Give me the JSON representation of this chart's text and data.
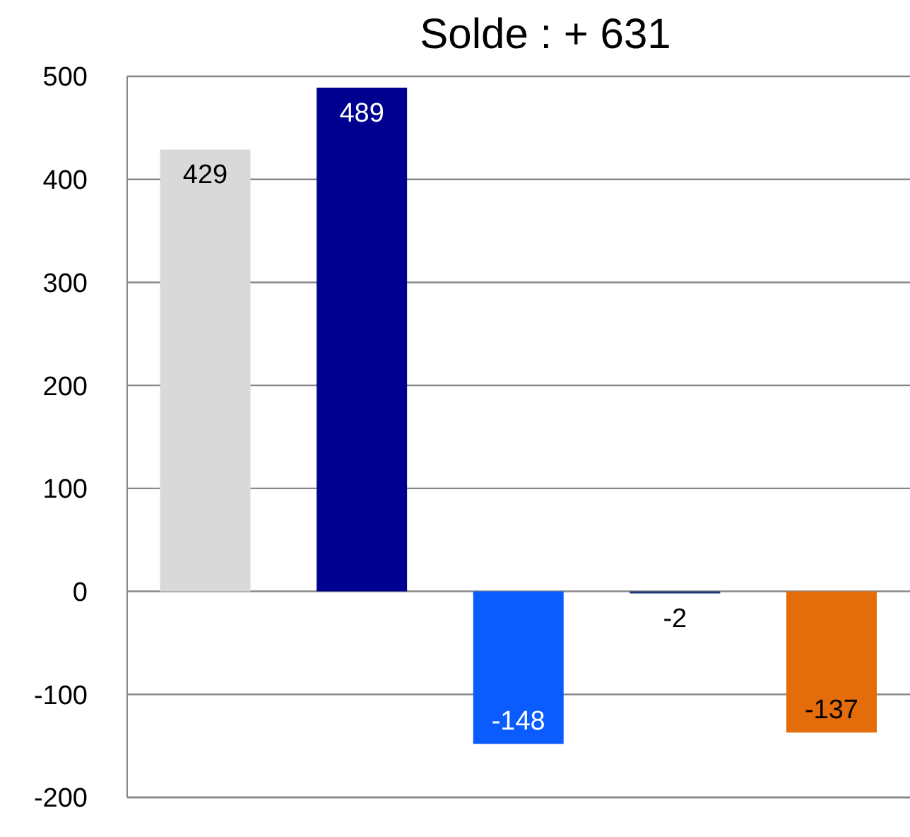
{
  "chart_data": {
    "type": "bar",
    "title": "Solde : + 631",
    "categories": [
      null,
      null,
      null,
      null,
      null
    ],
    "values": [
      429,
      489,
      -148,
      -2,
      -137
    ],
    "colors": [
      "#d9d9d9",
      "#000090",
      "#0a5cff",
      "#1f3a78",
      "#e46c0a"
    ],
    "ylim": [
      -200,
      500
    ],
    "yticks": [
      -200,
      -100,
      0,
      100,
      200,
      300,
      400,
      500
    ],
    "grid": "y",
    "data_labels": true
  }
}
